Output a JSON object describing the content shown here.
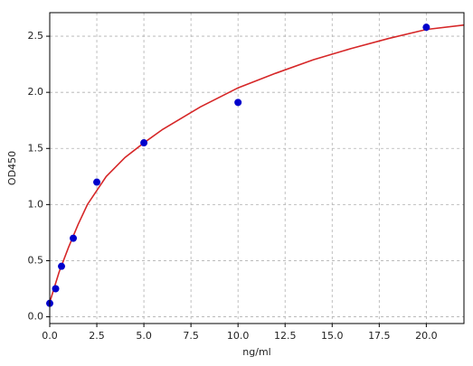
{
  "chart_data": {
    "type": "scatter",
    "x_label": "ng/ml",
    "y_label": "OD450",
    "xlim": [
      0,
      22
    ],
    "ylim": [
      -0.06,
      2.71
    ],
    "xticks": [
      {
        "value": 0,
        "label": "0.0"
      },
      {
        "value": 2.5,
        "label": "2.5"
      },
      {
        "value": 5,
        "label": "5.0"
      },
      {
        "value": 7.5,
        "label": "7.5"
      },
      {
        "value": 10,
        "label": "10.0"
      },
      {
        "value": 12.5,
        "label": "12.5"
      },
      {
        "value": 15,
        "label": "15.0"
      },
      {
        "value": 17.5,
        "label": "17.5"
      },
      {
        "value": 20,
        "label": "20.0"
      }
    ],
    "yticks": [
      {
        "value": 0,
        "label": "0.0"
      },
      {
        "value": 0.5,
        "label": "0.5"
      },
      {
        "value": 1,
        "label": "1.0"
      },
      {
        "value": 1.5,
        "label": "1.5"
      },
      {
        "value": 2,
        "label": "2.0"
      },
      {
        "value": 2.5,
        "label": "2.5"
      }
    ],
    "grid": true,
    "series": [
      {
        "type": "line",
        "color": "#d62728",
        "x": [
          0,
          0.5,
          1,
          1.5,
          2,
          3,
          4,
          5,
          6,
          8,
          10,
          12,
          14,
          16,
          18,
          20,
          22
        ],
        "values": [
          0.13,
          0.4,
          0.62,
          0.82,
          1.0,
          1.25,
          1.42,
          1.55,
          1.67,
          1.87,
          2.04,
          2.17,
          2.29,
          2.39,
          2.48,
          2.56,
          2.6
        ]
      },
      {
        "type": "scatter",
        "color": "#0000cc",
        "x": [
          0,
          0.3125,
          0.625,
          1.25,
          2.5,
          5,
          10,
          20
        ],
        "values": [
          0.12,
          0.25,
          0.45,
          0.7,
          1.2,
          1.55,
          1.91,
          2.58
        ]
      }
    ]
  }
}
